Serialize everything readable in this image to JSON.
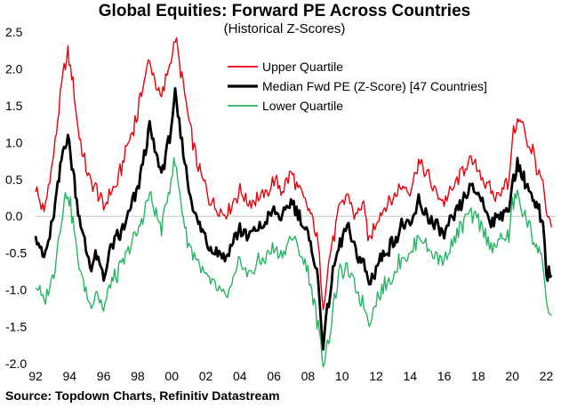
{
  "chart_data": {
    "type": "line",
    "title": "Global Equities: Forward PE Across Countries",
    "subtitle": "(Historical Z-Scores)",
    "source": "Source: Topdown Charts, Refinitiv Datastream",
    "xlabel": "",
    "ylabel": "",
    "xlim": [
      1992,
      2022.6
    ],
    "ylim": [
      -2.0,
      2.5
    ],
    "yticks": [
      2.5,
      2.0,
      1.5,
      1.0,
      0.5,
      0.0,
      -0.5,
      -1.0,
      -1.5,
      -2.0
    ],
    "ytick_labels": [
      "2.5",
      "2.0",
      "1.5",
      "1.0",
      "0.5",
      "0.0",
      "-0.5",
      "-1.0",
      "-1.5",
      "-2.0"
    ],
    "xticks": [
      1992,
      1994,
      1996,
      1998,
      2000,
      2002,
      2004,
      2006,
      2008,
      2010,
      2012,
      2014,
      2016,
      2018,
      2020,
      2022
    ],
    "xtick_labels": [
      "92",
      "94",
      "96",
      "98",
      "00",
      "02",
      "04",
      "06",
      "08",
      "10",
      "12",
      "14",
      "16",
      "18",
      "20",
      "22"
    ],
    "legend_position": "top-center",
    "series": [
      {
        "name": "Upper Quartile",
        "color": "#e8000b",
        "x": [
          1992.0,
          1992.5,
          1993.0,
          1993.3,
          1993.6,
          1993.9,
          1994.2,
          1994.5,
          1994.8,
          1995.2,
          1995.6,
          1996.0,
          1996.4,
          1996.8,
          1997.2,
          1997.6,
          1998.0,
          1998.3,
          1998.7,
          1999.0,
          1999.4,
          1999.8,
          2000.2,
          2000.6,
          2001.0,
          2001.4,
          2001.8,
          2002.2,
          2002.7,
          2003.2,
          2003.6,
          2004.0,
          2004.5,
          2005.0,
          2005.5,
          2006.0,
          2006.5,
          2007.0,
          2007.5,
          2008.0,
          2008.3,
          2008.6,
          2008.9,
          2009.3,
          2009.8,
          2010.3,
          2010.8,
          2011.2,
          2011.6,
          2012.0,
          2012.5,
          2013.0,
          2013.5,
          2014.0,
          2014.5,
          2015.0,
          2015.5,
          2016.0,
          2016.5,
          2017.0,
          2017.5,
          2018.0,
          2018.5,
          2019.0,
          2019.5,
          2019.8,
          2020.0,
          2020.3,
          2020.6,
          2020.9,
          2021.2,
          2021.5,
          2021.8,
          2022.0,
          2022.3
        ],
        "values": [
          0.4,
          0.05,
          0.75,
          1.3,
          1.9,
          2.2,
          1.8,
          1.2,
          0.8,
          0.45,
          0.35,
          0.1,
          0.35,
          0.45,
          0.8,
          1.1,
          1.4,
          1.8,
          2.1,
          1.85,
          1.6,
          2.0,
          2.4,
          1.9,
          1.3,
          0.8,
          0.5,
          0.25,
          0.1,
          0.05,
          0.2,
          0.35,
          0.2,
          0.25,
          0.3,
          0.5,
          0.35,
          0.6,
          0.35,
          0.1,
          -0.05,
          -0.4,
          -1.2,
          -0.5,
          0.05,
          0.3,
          0.0,
          0.2,
          -0.35,
          -0.05,
          0.1,
          0.25,
          0.4,
          0.35,
          0.75,
          0.55,
          0.35,
          0.2,
          0.35,
          0.6,
          0.75,
          0.65,
          0.4,
          0.25,
          0.45,
          0.4,
          1.1,
          1.3,
          1.25,
          1.0,
          0.9,
          0.6,
          0.45,
          0.0,
          -0.15
        ]
      },
      {
        "name": "Median Fwd PE (Z-Score) [47 Countries]",
        "color": "#000000",
        "x": [
          1992.0,
          1992.5,
          1993.0,
          1993.3,
          1993.6,
          1993.9,
          1994.2,
          1994.5,
          1994.8,
          1995.2,
          1995.6,
          1996.0,
          1996.4,
          1996.8,
          1997.2,
          1997.6,
          1998.0,
          1998.3,
          1998.7,
          1999.0,
          1999.4,
          1999.8,
          2000.2,
          2000.6,
          2001.0,
          2001.4,
          2001.8,
          2002.2,
          2002.7,
          2003.2,
          2003.6,
          2004.0,
          2004.5,
          2005.0,
          2005.5,
          2006.0,
          2006.5,
          2007.0,
          2007.5,
          2008.0,
          2008.3,
          2008.6,
          2008.9,
          2009.3,
          2009.8,
          2010.3,
          2010.8,
          2011.2,
          2011.6,
          2012.0,
          2012.5,
          2013.0,
          2013.5,
          2014.0,
          2014.5,
          2015.0,
          2015.5,
          2016.0,
          2016.5,
          2017.0,
          2017.5,
          2018.0,
          2018.5,
          2019.0,
          2019.5,
          2019.8,
          2020.0,
          2020.3,
          2020.6,
          2020.9,
          2021.2,
          2021.5,
          2021.8,
          2022.0,
          2022.3
        ],
        "values": [
          -0.2,
          -0.6,
          -0.1,
          0.4,
          0.85,
          1.1,
          0.6,
          0.1,
          -0.3,
          -0.65,
          -0.55,
          -0.85,
          -0.45,
          -0.3,
          -0.15,
          0.1,
          0.35,
          0.75,
          1.2,
          0.9,
          0.6,
          1.0,
          1.6,
          1.0,
          0.4,
          0.0,
          -0.2,
          -0.4,
          -0.5,
          -0.55,
          -0.35,
          -0.15,
          -0.3,
          -0.15,
          -0.1,
          0.1,
          -0.05,
          0.2,
          0.0,
          -0.3,
          -0.5,
          -0.9,
          -1.75,
          -1.0,
          -0.4,
          -0.15,
          -0.5,
          -0.6,
          -0.95,
          -0.7,
          -0.5,
          -0.35,
          -0.15,
          -0.15,
          0.2,
          0.0,
          -0.15,
          -0.25,
          -0.05,
          0.15,
          0.35,
          0.3,
          0.05,
          -0.1,
          0.1,
          0.0,
          0.5,
          0.7,
          0.55,
          0.4,
          0.2,
          0.1,
          -0.15,
          -0.75,
          -0.8
        ]
      },
      {
        "name": "Lower Quartile",
        "color": "#28b463",
        "x": [
          1992.0,
          1992.5,
          1993.0,
          1993.3,
          1993.6,
          1993.9,
          1994.2,
          1994.5,
          1994.8,
          1995.2,
          1995.6,
          1996.0,
          1996.4,
          1996.8,
          1997.2,
          1997.6,
          1998.0,
          1998.3,
          1998.7,
          1999.0,
          1999.4,
          1999.8,
          2000.2,
          2000.6,
          2001.0,
          2001.4,
          2001.8,
          2002.2,
          2002.7,
          2003.2,
          2003.6,
          2004.0,
          2004.5,
          2005.0,
          2005.5,
          2006.0,
          2006.5,
          2007.0,
          2007.5,
          2008.0,
          2008.3,
          2008.6,
          2008.9,
          2009.3,
          2009.8,
          2010.3,
          2010.8,
          2011.2,
          2011.6,
          2012.0,
          2012.5,
          2013.0,
          2013.5,
          2014.0,
          2014.5,
          2015.0,
          2015.5,
          2016.0,
          2016.5,
          2017.0,
          2017.5,
          2018.0,
          2018.5,
          2019.0,
          2019.5,
          2019.8,
          2020.0,
          2020.3,
          2020.6,
          2020.9,
          2021.2,
          2021.5,
          2021.8,
          2022.0,
          2022.3
        ],
        "values": [
          -0.9,
          -1.2,
          -0.85,
          -0.4,
          0.1,
          0.35,
          -0.1,
          -0.6,
          -0.9,
          -1.2,
          -1.0,
          -1.3,
          -0.9,
          -0.8,
          -0.6,
          -0.4,
          -0.2,
          0.0,
          0.3,
          0.05,
          -0.15,
          0.35,
          0.75,
          0.1,
          -0.4,
          -0.55,
          -0.75,
          -0.9,
          -1.0,
          -1.1,
          -0.9,
          -0.6,
          -0.8,
          -0.65,
          -0.55,
          -0.45,
          -0.5,
          -0.3,
          -0.45,
          -0.75,
          -1.1,
          -1.5,
          -2.0,
          -1.55,
          -0.8,
          -0.7,
          -1.0,
          -1.15,
          -1.45,
          -1.15,
          -0.95,
          -0.8,
          -0.55,
          -0.55,
          -0.25,
          -0.4,
          -0.55,
          -0.6,
          -0.35,
          -0.15,
          0.05,
          -0.05,
          -0.3,
          -0.45,
          -0.25,
          -0.3,
          0.15,
          0.3,
          0.05,
          -0.1,
          -0.3,
          -0.4,
          -0.65,
          -1.2,
          -1.35
        ]
      }
    ]
  }
}
